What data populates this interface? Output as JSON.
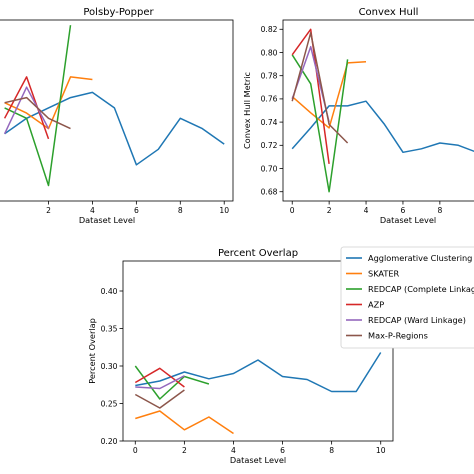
{
  "colors": {
    "Agglomerative Clustering": "#1f77b4",
    "SKATER": "#ff7f0e",
    "REDCAP (Complete Linkage)": "#2ca02c",
    "AZP": "#d62728",
    "REDCAP (Ward Linkage)": "#9467bd",
    "Max-P-Regions": "#8c564b"
  },
  "legend": {
    "placement": "right of bottom panel",
    "entries": [
      {
        "label": "Agglomerative Clustering",
        "color": "#1f77b4"
      },
      {
        "label": "SKATER",
        "color": "#ff7f0e"
      },
      {
        "label": "REDCAP (Complete Linkage)",
        "color": "#2ca02c"
      },
      {
        "label": "AZP",
        "color": "#d62728"
      },
      {
        "label": "REDCAP (Ward Linkage)",
        "color": "#9467bd"
      },
      {
        "label": "Max-P-Regions",
        "color": "#8c564b"
      }
    ]
  },
  "chart_data": [
    {
      "type": "line",
      "title": "Polsby-Popper",
      "xlabel": "Dataset Level",
      "ylabel": "",
      "xlim": [
        -0.3,
        10.4
      ],
      "ylim": [
        0.2,
        0.55
      ],
      "xticks": [
        "2",
        "4",
        "6",
        "8",
        "10"
      ],
      "xtick_values": [
        2,
        4,
        6,
        8,
        10
      ],
      "yticks": [],
      "grid": false,
      "series": [
        {
          "name": "Agglomerative Clustering",
          "x": [
            0,
            1,
            2,
            3,
            4,
            5,
            6,
            7,
            8,
            9,
            10
          ],
          "y": [
            0.33,
            0.36,
            0.38,
            0.4,
            0.41,
            0.38,
            0.27,
            0.3,
            0.36,
            0.34,
            0.31
          ]
        },
        {
          "name": "SKATER",
          "x": [
            0,
            1,
            2,
            3,
            4
          ],
          "y": [
            0.39,
            0.37,
            0.34,
            0.44,
            0.435
          ]
        },
        {
          "name": "REDCAP (Complete Linkage)",
          "x": [
            0,
            1,
            2,
            3
          ],
          "y": [
            0.38,
            0.36,
            0.23,
            0.54
          ]
        },
        {
          "name": "AZP",
          "x": [
            0,
            1,
            2
          ],
          "y": [
            0.36,
            0.44,
            0.32
          ]
        },
        {
          "name": "REDCAP (Ward Linkage)",
          "x": [
            0,
            1,
            2
          ],
          "y": [
            0.33,
            0.42,
            0.34
          ]
        },
        {
          "name": "Max-P-Regions",
          "x": [
            0,
            1,
            2,
            3
          ],
          "y": [
            0.39,
            0.4,
            0.36,
            0.34
          ]
        }
      ]
    },
    {
      "type": "line",
      "title": "Convex Hull",
      "xlabel": "Dataset Level",
      "ylabel": "Convex Hull Metric",
      "xlim": [
        -0.5,
        10.5
      ],
      "ylim": [
        0.672,
        0.828
      ],
      "xticks": [
        "0",
        "2",
        "4",
        "6",
        "8"
      ],
      "xtick_values": [
        0,
        2,
        4,
        6,
        8
      ],
      "yticks": [
        "0.68",
        "0.70",
        "0.72",
        "0.74",
        "0.76",
        "0.78",
        "0.80",
        "0.82"
      ],
      "ytick_values": [
        0.68,
        0.7,
        0.72,
        0.74,
        0.76,
        0.78,
        0.8,
        0.82
      ],
      "grid": false,
      "series": [
        {
          "name": "Agglomerative Clustering",
          "x": [
            0,
            1,
            2,
            3,
            4,
            5,
            6,
            7,
            8,
            9,
            10
          ],
          "y": [
            0.717,
            0.735,
            0.754,
            0.754,
            0.758,
            0.738,
            0.714,
            0.717,
            0.722,
            0.72,
            0.714
          ]
        },
        {
          "name": "SKATER",
          "x": [
            0,
            1,
            2,
            3,
            4
          ],
          "y": [
            0.762,
            0.748,
            0.735,
            0.791,
            0.792
          ]
        },
        {
          "name": "REDCAP (Complete Linkage)",
          "x": [
            0,
            1,
            2,
            3
          ],
          "y": [
            0.798,
            0.773,
            0.68,
            0.794
          ]
        },
        {
          "name": "AZP",
          "x": [
            0,
            1,
            2
          ],
          "y": [
            0.798,
            0.82,
            0.704
          ]
        },
        {
          "name": "REDCAP (Ward Linkage)",
          "x": [
            0,
            1,
            2
          ],
          "y": [
            0.76,
            0.805,
            0.74
          ]
        },
        {
          "name": "Max-P-Regions",
          "x": [
            0,
            1,
            2,
            3
          ],
          "y": [
            0.758,
            0.817,
            0.738,
            0.722
          ]
        }
      ]
    },
    {
      "type": "line",
      "title": "Percent Overlap",
      "xlabel": "Dataset Level",
      "ylabel": "Percent Overlap",
      "xlim": [
        -0.5,
        10.5
      ],
      "ylim": [
        0.2,
        0.44
      ],
      "xticks": [
        "0",
        "2",
        "4",
        "6",
        "8",
        "10"
      ],
      "xtick_values": [
        0,
        2,
        4,
        6,
        8,
        10
      ],
      "yticks": [
        "0.20",
        "0.25",
        "0.30",
        "0.35",
        "0.40"
      ],
      "ytick_values": [
        0.2,
        0.25,
        0.3,
        0.35,
        0.4
      ],
      "grid": false,
      "series": [
        {
          "name": "Agglomerative Clustering",
          "x": [
            0,
            1,
            2,
            3,
            4,
            5,
            6,
            7,
            8,
            9,
            10
          ],
          "y": [
            0.274,
            0.28,
            0.292,
            0.283,
            0.29,
            0.308,
            0.286,
            0.282,
            0.266,
            0.266,
            0.318
          ]
        },
        {
          "name": "SKATER",
          "x": [
            0,
            1,
            2,
            3,
            4
          ],
          "y": [
            0.23,
            0.24,
            0.215,
            0.232,
            0.21
          ]
        },
        {
          "name": "REDCAP (Complete Linkage)",
          "x": [
            0,
            1,
            2,
            3
          ],
          "y": [
            0.3,
            0.256,
            0.286,
            0.276
          ]
        },
        {
          "name": "AZP",
          "x": [
            0,
            1,
            2
          ],
          "y": [
            0.278,
            0.297,
            0.272
          ]
        },
        {
          "name": "REDCAP (Ward Linkage)",
          "x": [
            0,
            1,
            2
          ],
          "y": [
            0.272,
            0.27,
            0.287
          ]
        },
        {
          "name": "Max-P-Regions",
          "x": [
            0,
            1,
            2
          ],
          "y": [
            0.262,
            0.244,
            0.268
          ]
        }
      ]
    }
  ]
}
